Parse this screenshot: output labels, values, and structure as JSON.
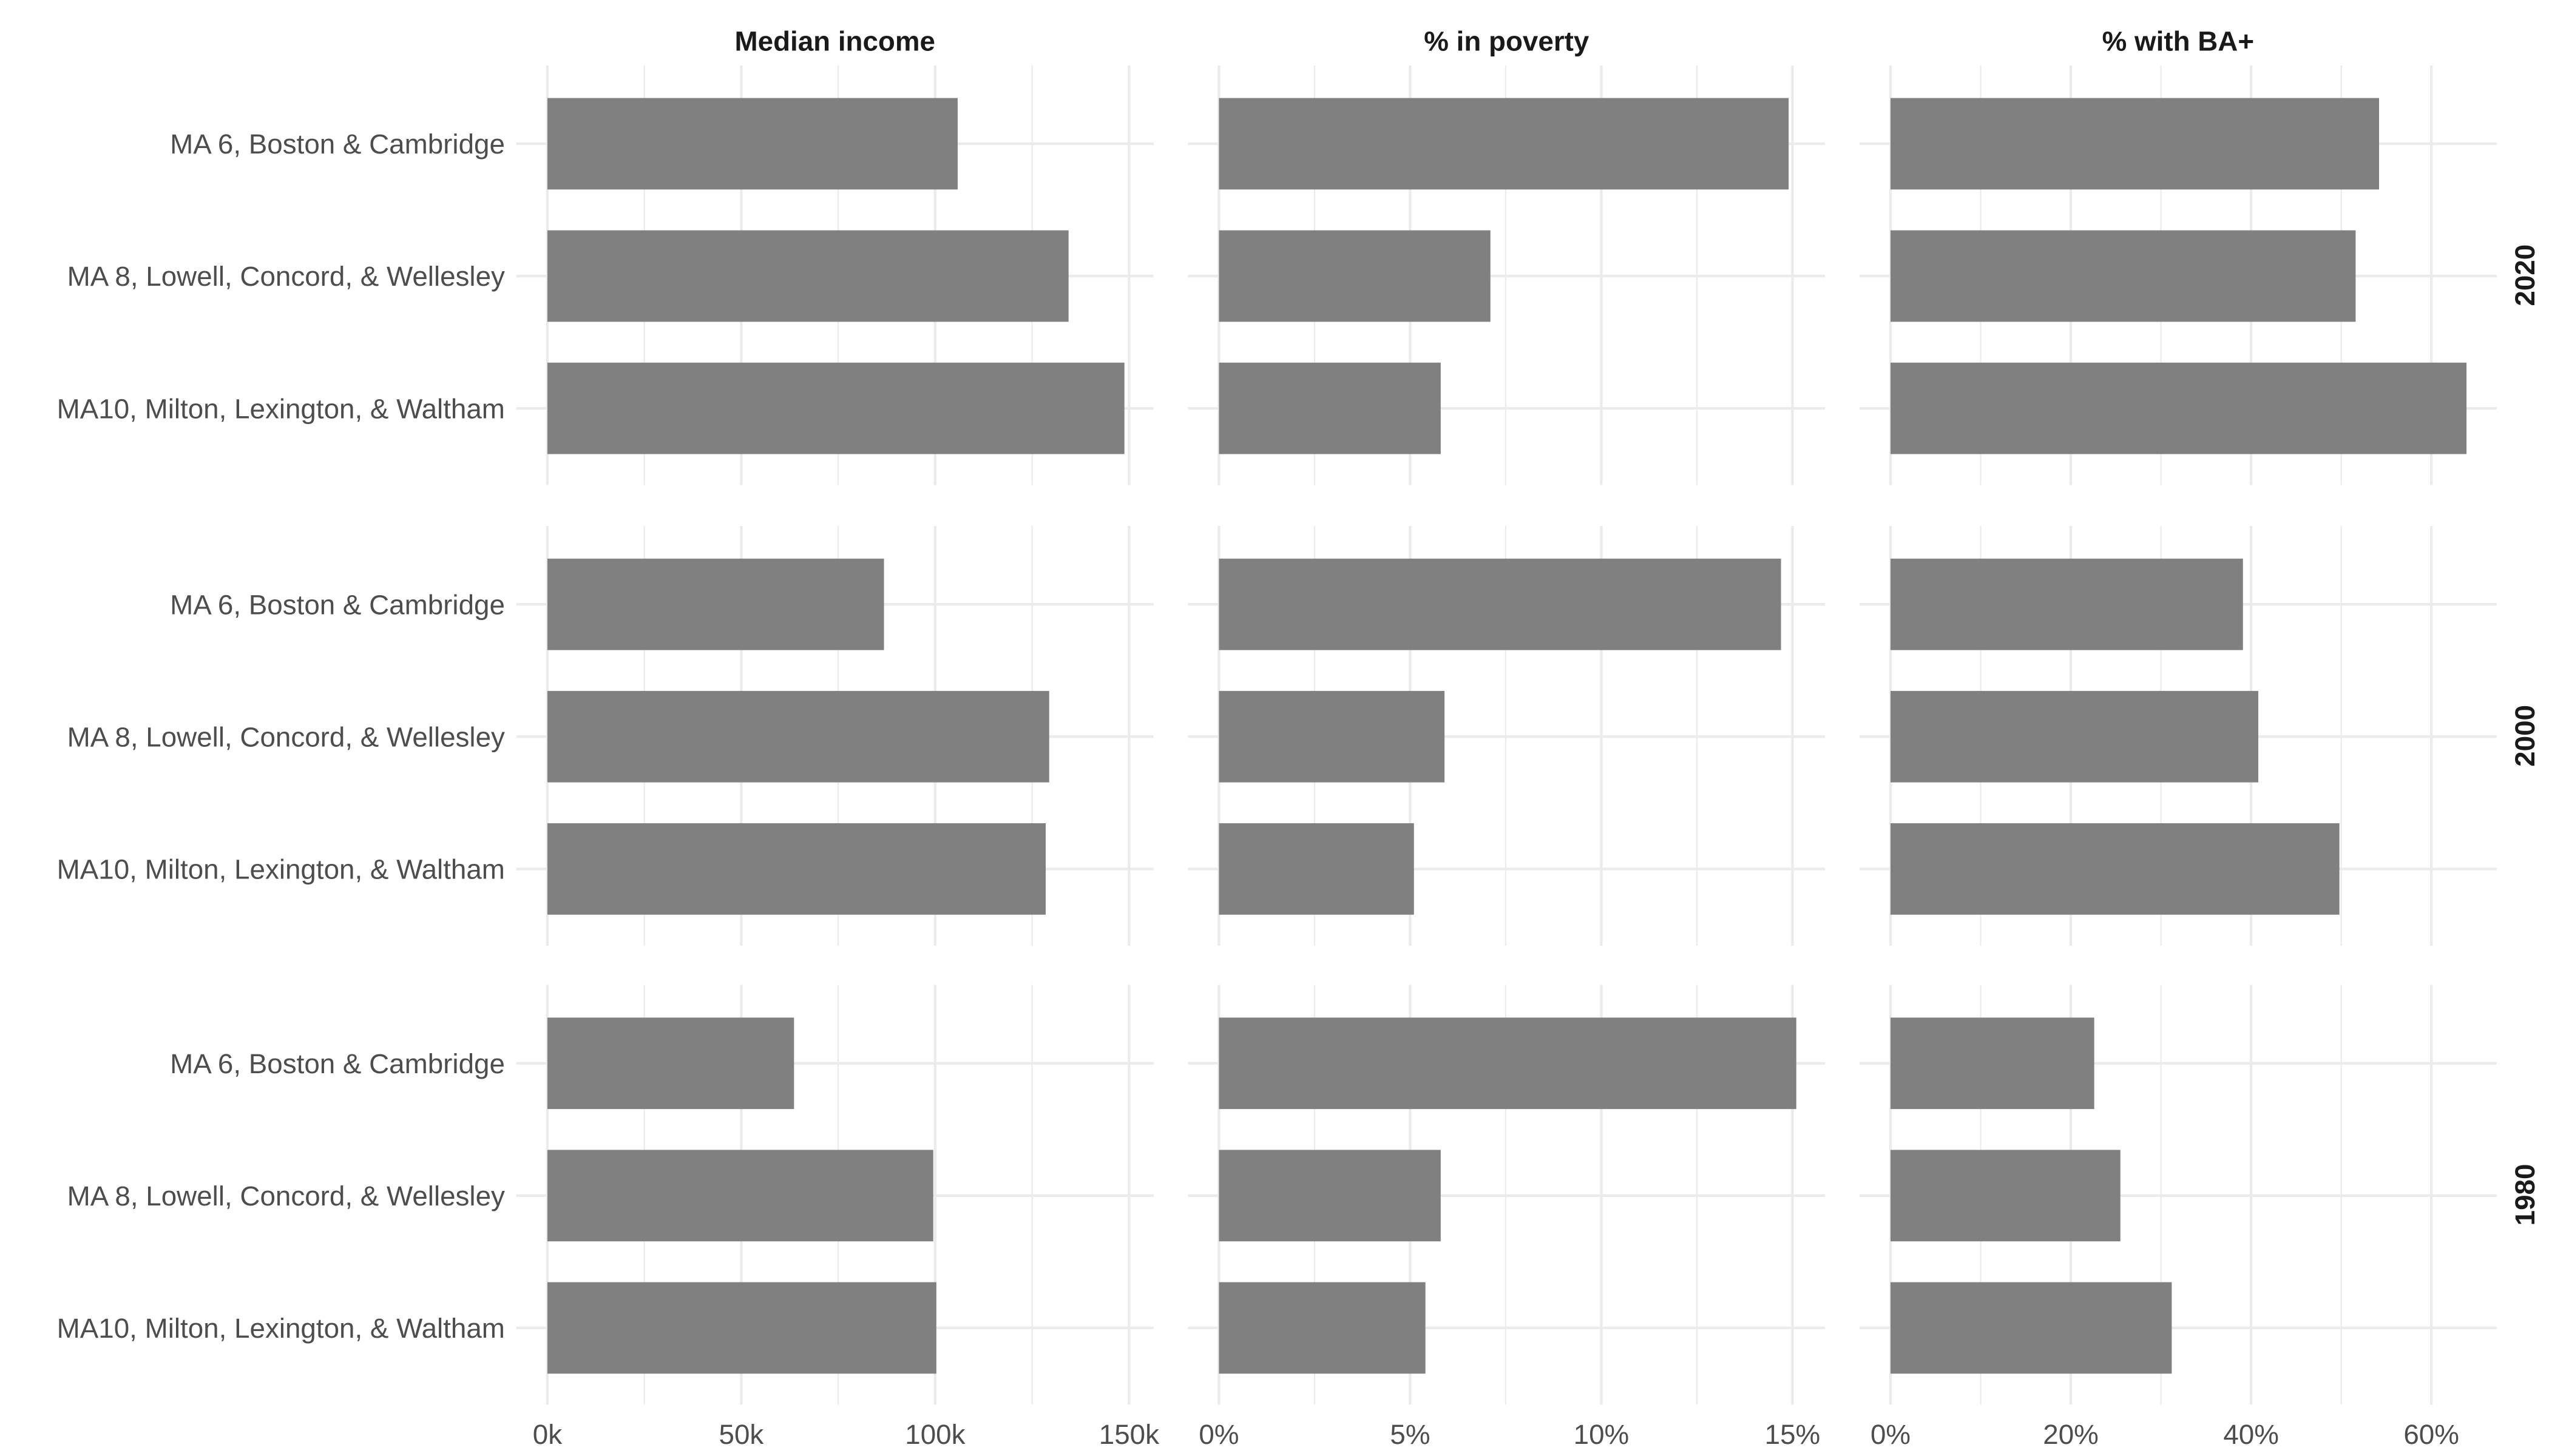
{
  "chart_data": {
    "type": "bar",
    "orientation": "horizontal",
    "facet_columns": [
      {
        "title": "Median income",
        "ticks": [
          "0k",
          "50k",
          "100k",
          "150k"
        ],
        "tick_values": [
          0,
          50,
          100,
          150
        ],
        "unit": "thousands USD"
      },
      {
        "title": "% in poverty",
        "ticks": [
          "0%",
          "5%",
          "10%",
          "15%"
        ],
        "tick_values": [
          0,
          5,
          10,
          15
        ],
        "unit": "percent"
      },
      {
        "title": "% with BA+",
        "ticks": [
          "0%",
          "20%",
          "40%",
          "60%"
        ],
        "tick_values": [
          0,
          20,
          40,
          60
        ],
        "unit": "percent"
      }
    ],
    "facet_rows": [
      "2020",
      "2000",
      "1980"
    ],
    "categories": [
      "MA 6, Boston & Cambridge",
      "MA 8, Lowell, Concord, & Wellesley",
      "MA10, Milton, Lexington, & Waltham"
    ],
    "values": {
      "2020": {
        "Median income": [
          105.8,
          134.4,
          148.8
        ],
        "% in poverty": [
          14.9,
          7.1,
          5.8
        ],
        "% with BA+": [
          54.2,
          51.6,
          63.9
        ]
      },
      "2000": {
        "Median income": [
          86.8,
          129.4,
          128.5
        ],
        "% in poverty": [
          14.7,
          5.9,
          5.1
        ],
        "% with BA+": [
          39.1,
          40.8,
          49.8
        ]
      },
      "1980": {
        "Median income": [
          63.6,
          99.5,
          100.3
        ],
        "% in poverty": [
          15.1,
          5.8,
          5.4
        ],
        "% with BA+": [
          22.6,
          25.5,
          31.2
        ]
      }
    },
    "bar_color": "#808080",
    "grid": true,
    "grid_color": "#ebebeb"
  }
}
